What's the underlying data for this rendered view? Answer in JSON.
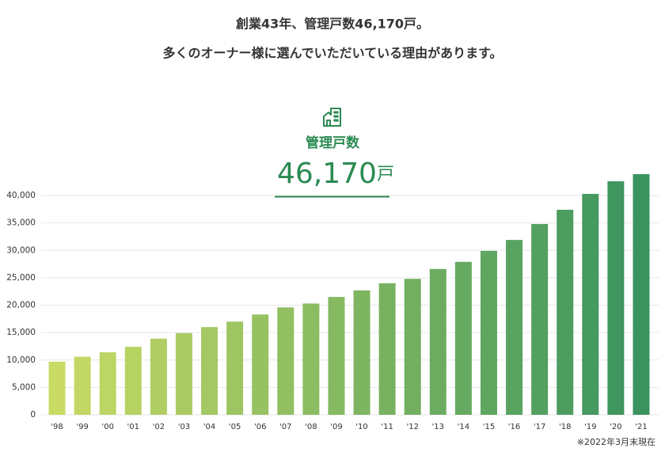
{
  "chart_data": {
    "type": "bar",
    "headline": [
      "創業43年、管理戸数46,170戸。",
      "多くのオーナー様に選んでいただいている理由があります。"
    ],
    "title": "管理戸数",
    "total": "46,170",
    "total_unit": "戸",
    "note": "※2022年3月末現在",
    "categories": [
      "'98",
      "'99",
      "'00",
      "'01",
      "'02",
      "'03",
      "'04",
      "'05",
      "'06",
      "'07",
      "'08",
      "'09",
      "'10",
      "'11",
      "'12",
      "'13",
      "'14",
      "'15",
      "'16",
      "'17",
      "'18",
      "'19",
      "'20",
      "'21"
    ],
    "values": [
      9700,
      10600,
      11400,
      12400,
      13900,
      14900,
      16000,
      17000,
      18300,
      19600,
      20300,
      21500,
      22700,
      24000,
      24800,
      26600,
      27900,
      29900,
      31900,
      34800,
      37400,
      40300,
      42600,
      43900
    ],
    "gradient": [
      "#c9db64",
      "#3a935f"
    ],
    "accent": "#2b8a52",
    "ylim": [
      0,
      45000
    ],
    "yticks": [
      0,
      {
        "value": 5000,
        "label": "5,000"
      },
      {
        "value": 10000,
        "label": "10,000"
      },
      {
        "value": 15000,
        "label": "15,000"
      },
      {
        "value": 20000,
        "label": "20,000"
      },
      {
        "value": 25000,
        "label": "25,000"
      },
      {
        "value": 30000,
        "label": "30,000"
      },
      {
        "value": 35000,
        "label": "35,000"
      },
      {
        "value": 40000,
        "label": "40,000"
      }
    ],
    "grid": true
  }
}
